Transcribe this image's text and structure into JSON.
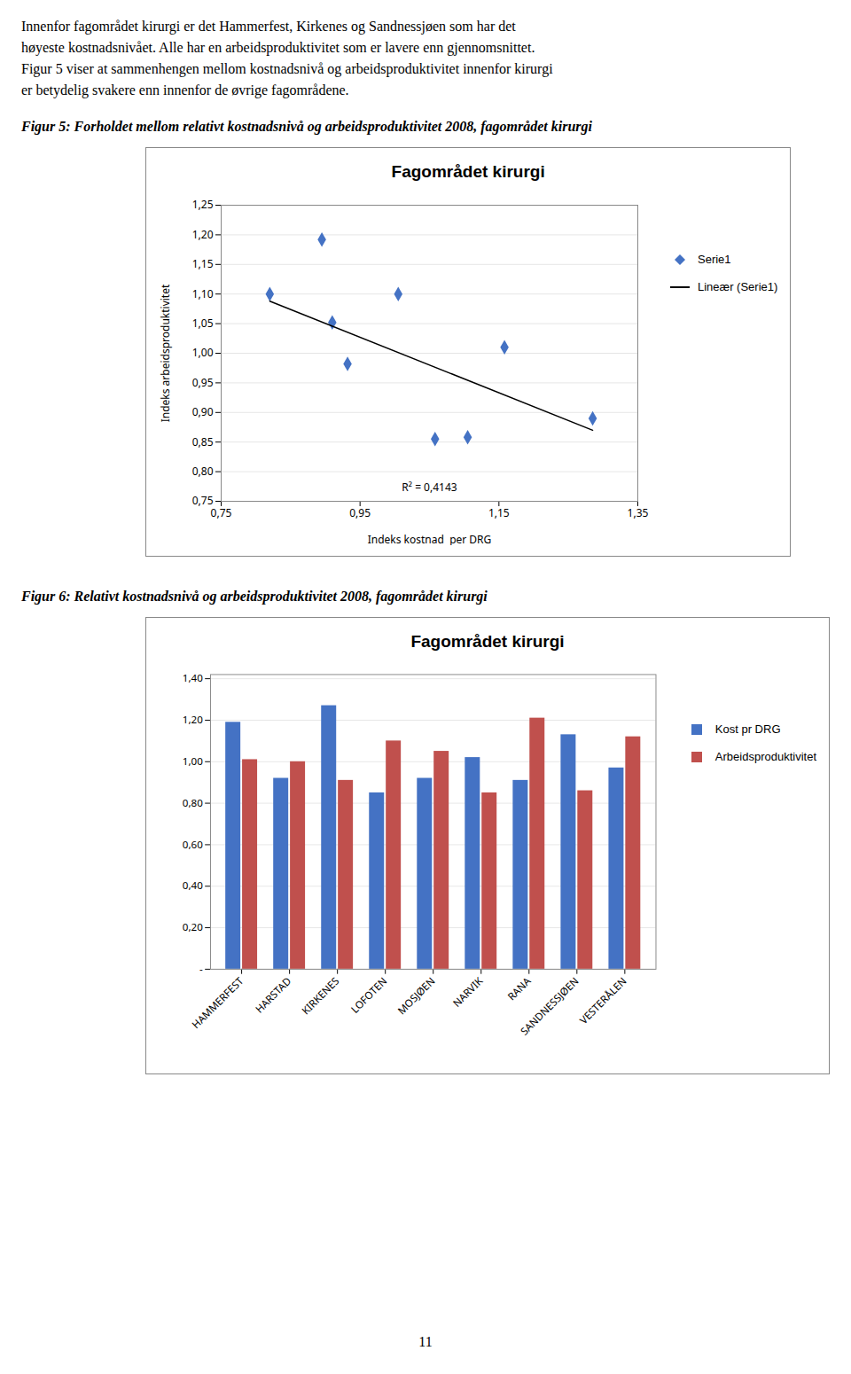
{
  "paragraph": [
    "Innenfor fagområdet kirurgi er det Hammerfest, Kirkenes og Sandnessjøen som har det",
    "høyeste kostnadsnivået. Alle har en arbeidsproduktivitet som er lavere enn gjennomsnittet.",
    "Figur 5 viser at sammenhengen mellom kostnadsnivå og arbeidsproduktivitet innenfor kirurgi",
    "er betydelig svakere enn innenfor de øvrige fagområdene."
  ],
  "page_number": "11",
  "chart_data": [
    {
      "type": "scatter",
      "caption": "Figur 5: Forholdet mellom relativt kostnadsnivå og arbeidsproduktivitet 2008, fagområdet kirurgi",
      "title": "Fagområdet kirurgi",
      "xlabel": "Indeks kostnad  per DRG",
      "ylabel": "Indeks arbeidsproduktivitet",
      "series": [
        {
          "name": "Serie1",
          "color": "#4472C4",
          "marker": "diamond",
          "x": [
            0.82,
            0.895,
            0.91,
            0.932,
            1.005,
            1.058,
            1.105,
            1.158,
            1.285
          ],
          "values": [
            1.1,
            1.192,
            1.052,
            0.982,
            1.1,
            0.855,
            0.858,
            1.01,
            0.89
          ]
        },
        {
          "name": "Lineær (Serie1)",
          "type": "line",
          "color": "#000000",
          "line_style": "solid",
          "x": [
            0.82,
            1.285
          ],
          "values": [
            1.088,
            0.87
          ]
        }
      ],
      "annotations": [
        "R² = 0,4143"
      ],
      "xlim": [
        0.75,
        1.35
      ],
      "ylim": [
        0.75,
        1.25
      ],
      "xticks": [
        {
          "value": 0.75,
          "label": "0,75"
        },
        {
          "value": 0.95,
          "label": "0,95"
        },
        {
          "value": 1.15,
          "label": "1,15"
        },
        {
          "value": 1.35,
          "label": "1,35"
        }
      ],
      "yticks": [
        {
          "value": 0.75,
          "label": "0,75"
        },
        {
          "value": 0.8,
          "label": "0,80"
        },
        {
          "value": 0.85,
          "label": "0,85"
        },
        {
          "value": 0.9,
          "label": "0,90"
        },
        {
          "value": 0.95,
          "label": "0,95"
        },
        {
          "value": 1.0,
          "label": "1,00"
        },
        {
          "value": 1.05,
          "label": "1,05"
        },
        {
          "value": 1.1,
          "label": "1,10"
        },
        {
          "value": 1.15,
          "label": "1,15"
        },
        {
          "value": 1.2,
          "label": "1,20"
        },
        {
          "value": 1.25,
          "label": "1,25"
        }
      ],
      "grid": "y",
      "legend": "right"
    },
    {
      "type": "bar",
      "caption": "Figur 6: Relativt kostnadsnivå og arbeidsproduktivitet 2008, fagområdet kirurgi",
      "title": "Fagområdet kirurgi",
      "categories": [
        "HAMMERFEST",
        "HARSTAD",
        "KIRKENES",
        "LOFOTEN",
        "MOSJØEN",
        "NARVIK",
        "RANA",
        "SANDNESSJØEN",
        "VESTERÅLEN"
      ],
      "series": [
        {
          "name": "Kost pr DRG",
          "color": "#4472C4",
          "values": [
            1.19,
            0.92,
            1.27,
            0.85,
            0.92,
            1.02,
            0.91,
            1.13,
            0.97
          ]
        },
        {
          "name": "Arbeidsproduktivitet",
          "color": "#C0504D",
          "values": [
            1.01,
            1.0,
            0.91,
            1.1,
            1.05,
            0.85,
            1.21,
            0.86,
            1.12
          ]
        }
      ],
      "ylim": [
        0,
        1.42
      ],
      "yticks": [
        {
          "value": 0,
          "label": "-"
        },
        {
          "value": 0.2,
          "label": "0,20"
        },
        {
          "value": 0.4,
          "label": "0,40"
        },
        {
          "value": 0.6,
          "label": "0,60"
        },
        {
          "value": 0.8,
          "label": "0,80"
        },
        {
          "value": 1.0,
          "label": "1,00"
        },
        {
          "value": 1.2,
          "label": "1,20"
        },
        {
          "value": 1.4,
          "label": "1,40"
        }
      ],
      "grid": "y",
      "legend": "right"
    }
  ]
}
